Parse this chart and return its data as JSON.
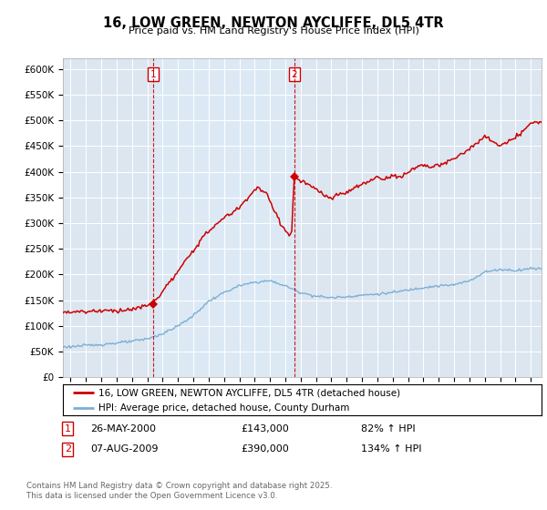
{
  "title": "16, LOW GREEN, NEWTON AYCLIFFE, DL5 4TR",
  "subtitle": "Price paid vs. HM Land Registry's House Price Index (HPI)",
  "legend_line1": "16, LOW GREEN, NEWTON AYCLIFFE, DL5 4TR (detached house)",
  "legend_line2": "HPI: Average price, detached house, County Durham",
  "transaction1_date": "26-MAY-2000",
  "transaction1_price": "£143,000",
  "transaction1_hpi": "82% ↑ HPI",
  "transaction2_date": "07-AUG-2009",
  "transaction2_price": "£390,000",
  "transaction2_hpi": "134% ↑ HPI",
  "marker1_year": 2000.38,
  "marker1_price": 143000,
  "marker2_year": 2009.58,
  "marker2_price": 390000,
  "vline1_year": 2000.38,
  "vline2_year": 2009.58,
  "red_color": "#cc0000",
  "blue_color": "#7bafd4",
  "shade_color": "#dce9f5",
  "background_color": "#dce6f1",
  "plot_bg_color": "#dce6f1",
  "ylim": [
    0,
    620000
  ],
  "xlim_start": 1994.5,
  "xlim_end": 2025.7,
  "copyright_text": "Contains HM Land Registry data © Crown copyright and database right 2025.\nThis data is licensed under the Open Government Licence v3.0.",
  "ytick_labels": [
    "£0",
    "£50K",
    "£100K",
    "£150K",
    "£200K",
    "£250K",
    "£300K",
    "£350K",
    "£400K",
    "£450K",
    "£500K",
    "£550K",
    "£600K"
  ],
  "ytick_values": [
    0,
    50000,
    100000,
    150000,
    200000,
    250000,
    300000,
    350000,
    400000,
    450000,
    500000,
    550000,
    600000
  ],
  "hpi_key_years": [
    1994,
    1995,
    1996,
    1997,
    1998,
    1999,
    2000,
    2001,
    2002,
    2003,
    2004,
    2005,
    2006,
    2007,
    2008,
    2009,
    2010,
    2011,
    2012,
    2013,
    2014,
    2015,
    2016,
    2017,
    2018,
    2019,
    2020,
    2021,
    2022,
    2023,
    2024,
    2025
  ],
  "hpi_key_vals": [
    58000,
    60000,
    62000,
    64000,
    67000,
    70000,
    75000,
    85000,
    100000,
    120000,
    148000,
    165000,
    178000,
    185000,
    188000,
    178000,
    165000,
    158000,
    155000,
    157000,
    160000,
    162000,
    165000,
    170000,
    175000,
    178000,
    180000,
    188000,
    205000,
    210000,
    208000,
    212000
  ],
  "red_key_years": [
    1994,
    1995,
    1996,
    1997,
    1998,
    1999,
    2000.38,
    2001,
    2002,
    2003,
    2004,
    2005,
    2006,
    2006.7,
    2007.2,
    2007.8,
    2008.2,
    2008.7,
    2009.0,
    2009.4,
    2009.58,
    2010.0,
    2010.5,
    2011,
    2011.5,
    2012,
    2012.5,
    2013,
    2013.5,
    2014,
    2014.5,
    2015,
    2015.5,
    2016,
    2016.5,
    2017,
    2017.5,
    2018,
    2018.5,
    2019,
    2019.5,
    2020,
    2020.5,
    2021,
    2021.5,
    2022,
    2022.5,
    2023,
    2023.5,
    2024,
    2024.5,
    2025
  ],
  "red_key_vals": [
    125000,
    128000,
    128000,
    130000,
    130000,
    132000,
    143000,
    168000,
    205000,
    248000,
    285000,
    310000,
    330000,
    355000,
    370000,
    355000,
    330000,
    300000,
    285000,
    275000,
    390000,
    382000,
    375000,
    365000,
    355000,
    348000,
    355000,
    360000,
    368000,
    375000,
    382000,
    390000,
    385000,
    395000,
    388000,
    400000,
    408000,
    415000,
    408000,
    412000,
    418000,
    425000,
    435000,
    445000,
    455000,
    468000,
    460000,
    450000,
    458000,
    465000,
    480000,
    495000
  ]
}
